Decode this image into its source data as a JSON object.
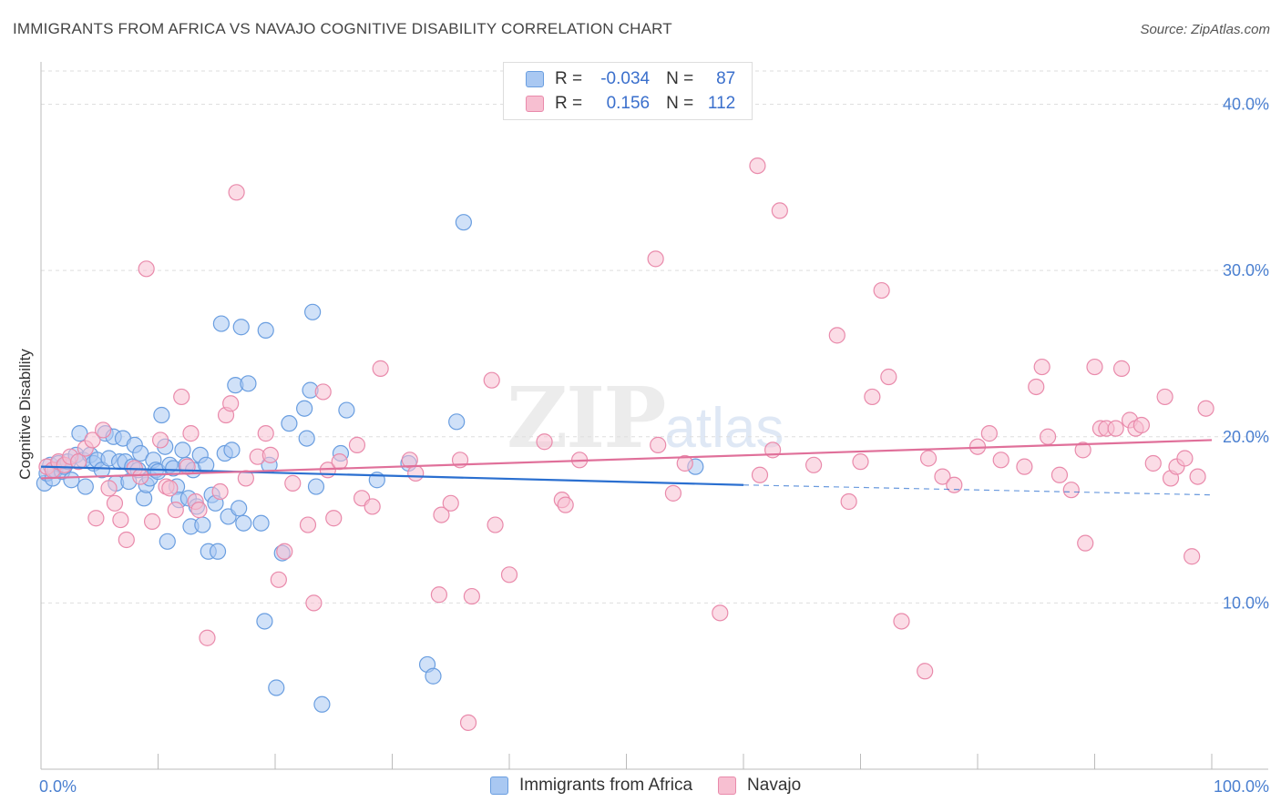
{
  "title": "IMMIGRANTS FROM AFRICA VS NAVAJO COGNITIVE DISABILITY CORRELATION CHART",
  "source": "Source: ZipAtlas.com",
  "watermark": {
    "zip": "ZIP",
    "atlas": "atlas"
  },
  "legend": {
    "rows": [
      {
        "r_label": "R =",
        "r_value": "-0.034",
        "n_label": "N =",
        "n_value": "87",
        "color": "#a9c8f2",
        "border": "#6a9ee0"
      },
      {
        "r_label": "R =",
        "r_value": "0.156",
        "n_label": "N =",
        "n_value": "112",
        "color": "#f7bfd1",
        "border": "#e98aab"
      }
    ]
  },
  "bottom_legend": [
    {
      "label": "Immigrants from Africa",
      "color": "#a9c8f2",
      "border": "#6a9ee0"
    },
    {
      "label": "Navajo",
      "color": "#f7bfd1",
      "border": "#e98aab"
    }
  ],
  "chart_data": {
    "type": "scatter",
    "title": "IMMIGRANTS FROM AFRICA VS NAVAJO COGNITIVE DISABILITY CORRELATION CHART",
    "xlabel": "",
    "ylabel": "Cognitive Disability",
    "xlim": [
      0,
      100
    ],
    "ylim": [
      0,
      42
    ],
    "x_tick_labels": [
      "0.0%",
      "100.0%"
    ],
    "y_ticks": [
      10,
      20,
      30,
      40
    ],
    "y_tick_labels": [
      "10.0%",
      "20.0%",
      "30.0%",
      "40.0%"
    ],
    "grid": true,
    "series": [
      {
        "name": "Immigrants from Africa",
        "color": "#6a9ee0",
        "fill": "#a9c8f2",
        "trend": {
          "x": [
            0,
            60
          ],
          "y": [
            18.2,
            17.1
          ],
          "dashed_x": [
            60,
            100
          ],
          "dashed_y": [
            17.1,
            16.5
          ],
          "color": "#2a6fd0"
        },
        "points": [
          [
            0.3,
            17.2
          ],
          [
            0.5,
            17.8
          ],
          [
            0.8,
            18.3
          ],
          [
            1.0,
            17.5
          ],
          [
            1.2,
            18.0
          ],
          [
            1.5,
            18.4
          ],
          [
            1.8,
            17.9
          ],
          [
            2.0,
            18.2
          ],
          [
            2.3,
            18.5
          ],
          [
            2.6,
            17.4
          ],
          [
            3.0,
            18.9
          ],
          [
            3.3,
            20.2
          ],
          [
            3.6,
            18.6
          ],
          [
            3.8,
            17.0
          ],
          [
            4.2,
            18.9
          ],
          [
            4.5,
            18.4
          ],
          [
            4.8,
            18.6
          ],
          [
            5.2,
            18.0
          ],
          [
            5.5,
            20.2
          ],
          [
            5.8,
            18.7
          ],
          [
            6.2,
            20.0
          ],
          [
            6.4,
            17.2
          ],
          [
            6.7,
            18.5
          ],
          [
            7.0,
            19.9
          ],
          [
            7.2,
            18.5
          ],
          [
            7.5,
            17.3
          ],
          [
            7.8,
            18.2
          ],
          [
            8.0,
            19.5
          ],
          [
            8.3,
            18.0
          ],
          [
            8.5,
            19.0
          ],
          [
            8.8,
            16.3
          ],
          [
            9.0,
            17.1
          ],
          [
            9.3,
            17.5
          ],
          [
            9.6,
            18.6
          ],
          [
            9.8,
            18.0
          ],
          [
            10.0,
            17.9
          ],
          [
            10.3,
            21.3
          ],
          [
            10.6,
            19.4
          ],
          [
            10.8,
            13.7
          ],
          [
            11.0,
            18.3
          ],
          [
            11.3,
            18.1
          ],
          [
            11.6,
            17.0
          ],
          [
            11.8,
            16.2
          ],
          [
            12.1,
            19.2
          ],
          [
            12.4,
            18.3
          ],
          [
            12.6,
            16.3
          ],
          [
            12.8,
            14.6
          ],
          [
            13.0,
            18.0
          ],
          [
            13.3,
            15.8
          ],
          [
            13.6,
            18.9
          ],
          [
            13.8,
            14.7
          ],
          [
            14.1,
            18.3
          ],
          [
            14.3,
            13.1
          ],
          [
            14.6,
            16.5
          ],
          [
            14.9,
            16.0
          ],
          [
            15.1,
            13.1
          ],
          [
            15.4,
            26.8
          ],
          [
            15.7,
            19.0
          ],
          [
            16.0,
            15.2
          ],
          [
            16.3,
            19.2
          ],
          [
            16.6,
            23.1
          ],
          [
            16.9,
            15.7
          ],
          [
            17.1,
            26.6
          ],
          [
            17.3,
            14.8
          ],
          [
            17.7,
            23.2
          ],
          [
            18.8,
            14.8
          ],
          [
            19.1,
            8.9
          ],
          [
            19.2,
            26.4
          ],
          [
            19.5,
            18.3
          ],
          [
            20.1,
            4.9
          ],
          [
            20.6,
            13.0
          ],
          [
            21.2,
            20.8
          ],
          [
            22.5,
            21.7
          ],
          [
            22.7,
            19.9
          ],
          [
            23.0,
            22.8
          ],
          [
            23.2,
            27.5
          ],
          [
            23.5,
            17.0
          ],
          [
            24.0,
            3.9
          ],
          [
            25.6,
            19.0
          ],
          [
            26.1,
            21.6
          ],
          [
            28.7,
            17.4
          ],
          [
            31.4,
            18.4
          ],
          [
            33.0,
            6.3
          ],
          [
            33.5,
            5.6
          ],
          [
            35.5,
            20.9
          ],
          [
            36.1,
            32.9
          ],
          [
            55.9,
            18.2
          ]
        ]
      },
      {
        "name": "Navajo",
        "color": "#e98aab",
        "fill": "#f7bfd1",
        "trend": {
          "x": [
            0,
            100
          ],
          "y": [
            17.5,
            19.8
          ],
          "color": "#e0709a"
        },
        "points": [
          [
            0.5,
            18.2
          ],
          [
            1.0,
            18.0
          ],
          [
            1.5,
            18.5
          ],
          [
            2.0,
            18.3
          ],
          [
            2.5,
            18.8
          ],
          [
            3.2,
            18.5
          ],
          [
            3.8,
            19.3
          ],
          [
            4.4,
            19.8
          ],
          [
            4.7,
            15.1
          ],
          [
            5.3,
            20.4
          ],
          [
            5.8,
            16.9
          ],
          [
            6.3,
            16.0
          ],
          [
            6.8,
            15.0
          ],
          [
            7.3,
            13.8
          ],
          [
            8.0,
            18.1
          ],
          [
            8.5,
            17.6
          ],
          [
            9.0,
            30.1
          ],
          [
            9.5,
            14.9
          ],
          [
            10.2,
            19.8
          ],
          [
            10.7,
            17.0
          ],
          [
            11.0,
            16.9
          ],
          [
            11.5,
            15.6
          ],
          [
            12.0,
            22.4
          ],
          [
            12.5,
            18.2
          ],
          [
            12.8,
            20.2
          ],
          [
            13.2,
            16.1
          ],
          [
            13.5,
            15.6
          ],
          [
            14.2,
            7.9
          ],
          [
            15.3,
            16.7
          ],
          [
            15.8,
            21.3
          ],
          [
            16.2,
            22.0
          ],
          [
            16.7,
            34.7
          ],
          [
            17.5,
            17.5
          ],
          [
            18.5,
            18.8
          ],
          [
            19.2,
            20.2
          ],
          [
            19.6,
            18.9
          ],
          [
            20.3,
            11.4
          ],
          [
            20.8,
            13.1
          ],
          [
            21.5,
            17.2
          ],
          [
            22.8,
            14.7
          ],
          [
            23.3,
            10.0
          ],
          [
            24.1,
            22.7
          ],
          [
            24.5,
            18.0
          ],
          [
            25.0,
            15.1
          ],
          [
            25.5,
            18.5
          ],
          [
            27.0,
            19.5
          ],
          [
            27.4,
            16.3
          ],
          [
            28.3,
            15.8
          ],
          [
            29.0,
            24.1
          ],
          [
            31.5,
            18.6
          ],
          [
            32.0,
            17.8
          ],
          [
            34.0,
            10.5
          ],
          [
            34.2,
            15.3
          ],
          [
            35.0,
            16.0
          ],
          [
            35.8,
            18.6
          ],
          [
            36.5,
            2.8
          ],
          [
            36.8,
            10.4
          ],
          [
            38.5,
            23.4
          ],
          [
            38.8,
            14.7
          ],
          [
            40.0,
            11.7
          ],
          [
            43.0,
            19.7
          ],
          [
            44.5,
            16.2
          ],
          [
            44.8,
            15.9
          ],
          [
            46.0,
            18.6
          ],
          [
            52.5,
            30.7
          ],
          [
            52.7,
            19.5
          ],
          [
            54.0,
            16.6
          ],
          [
            55.0,
            18.4
          ],
          [
            58.0,
            9.4
          ],
          [
            61.2,
            36.3
          ],
          [
            61.4,
            17.7
          ],
          [
            62.5,
            19.2
          ],
          [
            63.1,
            33.6
          ],
          [
            66.0,
            18.3
          ],
          [
            68.0,
            26.1
          ],
          [
            69.0,
            16.1
          ],
          [
            70.0,
            18.5
          ],
          [
            71.0,
            22.4
          ],
          [
            71.8,
            28.8
          ],
          [
            72.4,
            23.6
          ],
          [
            73.5,
            8.9
          ],
          [
            75.5,
            5.9
          ],
          [
            75.8,
            18.7
          ],
          [
            77.0,
            17.6
          ],
          [
            78.0,
            17.1
          ],
          [
            80.0,
            19.4
          ],
          [
            81.0,
            20.2
          ],
          [
            82.0,
            18.6
          ],
          [
            84.0,
            18.2
          ],
          [
            85.0,
            23.0
          ],
          [
            85.5,
            24.2
          ],
          [
            86.0,
            20.0
          ],
          [
            87.0,
            17.7
          ],
          [
            88.0,
            16.8
          ],
          [
            89.0,
            19.2
          ],
          [
            89.2,
            13.6
          ],
          [
            90.0,
            24.2
          ],
          [
            90.5,
            20.5
          ],
          [
            91.0,
            20.5
          ],
          [
            91.8,
            20.5
          ],
          [
            92.3,
            24.1
          ],
          [
            93.0,
            21.0
          ],
          [
            93.5,
            20.5
          ],
          [
            94.0,
            20.7
          ],
          [
            95.0,
            18.4
          ],
          [
            96.0,
            22.4
          ],
          [
            96.5,
            17.5
          ],
          [
            97.0,
            18.2
          ],
          [
            97.7,
            18.7
          ],
          [
            98.3,
            12.8
          ],
          [
            98.8,
            17.6
          ],
          [
            99.5,
            21.7
          ]
        ]
      }
    ]
  }
}
